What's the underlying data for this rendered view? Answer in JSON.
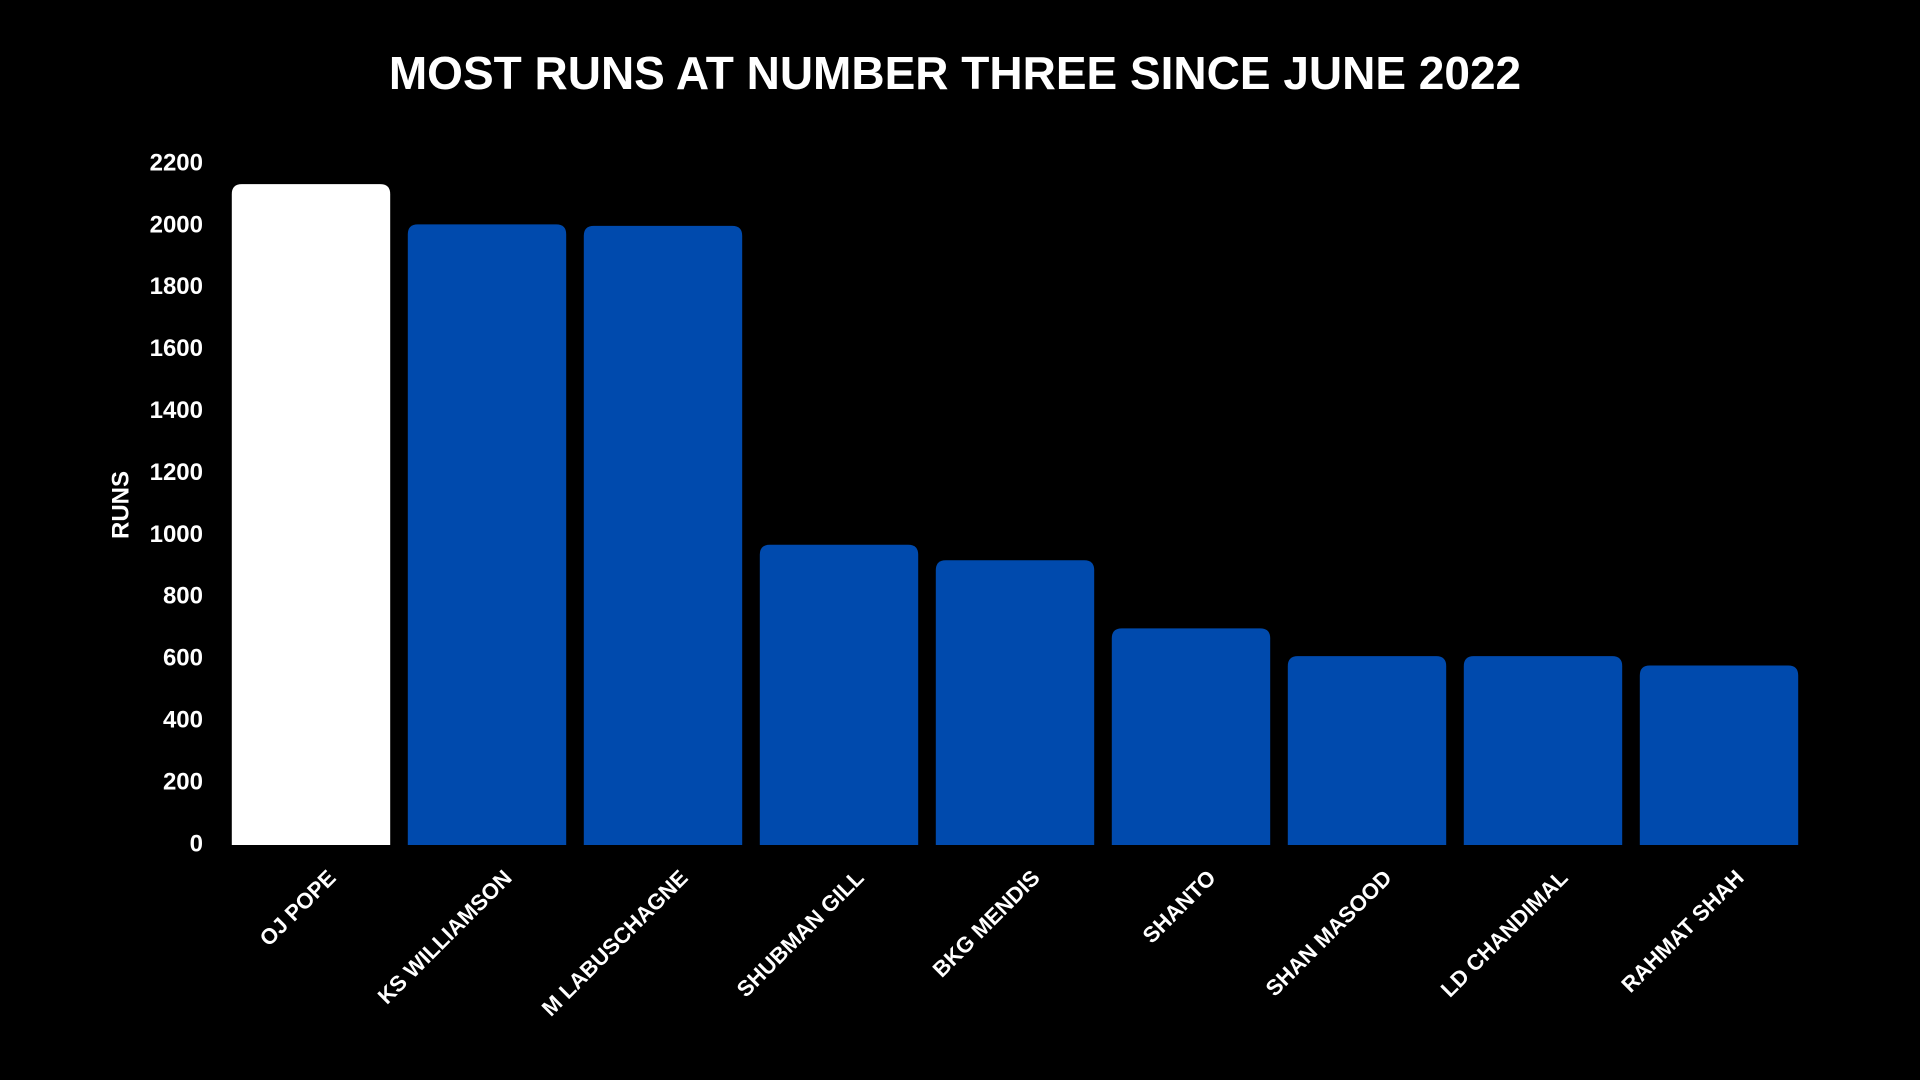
{
  "chart_data": {
    "type": "bar",
    "title": "MOST RUNS AT NUMBER THREE SINCE JUNE 2022",
    "y_label": "RUNS",
    "categories": [
      "OJ POPE",
      "KS WILLIAMSON",
      "M LABUSCHAGNE",
      "SHUBMAN GILL",
      "BKG MENDIS",
      "SHANTO",
      "SHAN MASOOD",
      "LD CHANDIMAL",
      "RAHMAT SHAH"
    ],
    "values": [
      2135,
      2005,
      2000,
      970,
      920,
      700,
      610,
      610,
      580
    ],
    "colors": [
      "#ffffff",
      "#004aad",
      "#004aad",
      "#004aad",
      "#004aad",
      "#004aad",
      "#004aad",
      "#004aad",
      "#004aad"
    ],
    "ylim": [
      0,
      2200
    ],
    "yticks": [
      0,
      200,
      400,
      600,
      800,
      1000,
      1200,
      1400,
      1600,
      1800,
      2000,
      2200
    ],
    "grid": false
  }
}
